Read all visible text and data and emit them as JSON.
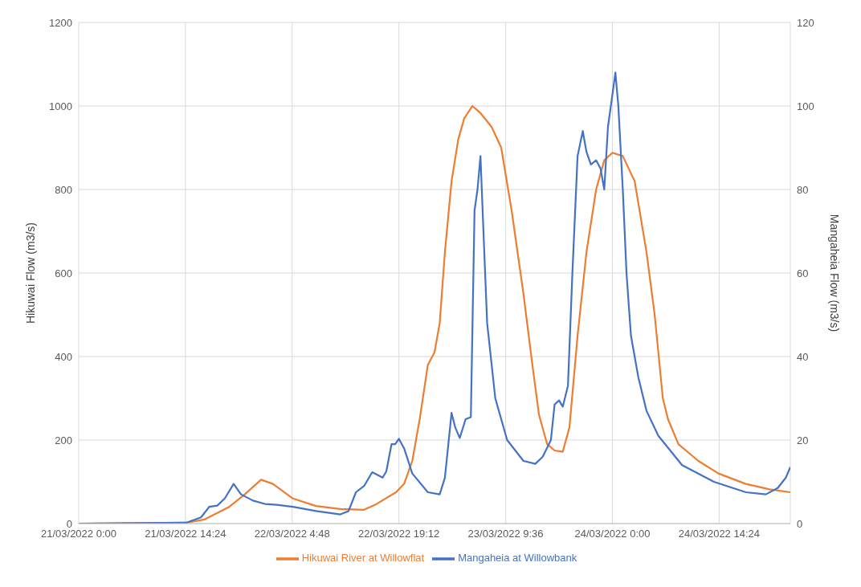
{
  "chart_data": {
    "type": "line",
    "ylabel": "Hikuwai Flow (m3/s)",
    "y2label": "Mangaheia Flow (m3/s)",
    "xlim": [
      "2022-03-21T00:00",
      "2022-03-25T00:00"
    ],
    "xticks": [
      {
        "value": "2022-03-21T00:00",
        "label": "21/03/2022 0:00"
      },
      {
        "value": "2022-03-21T14:24",
        "label": "21/03/2022 14:24"
      },
      {
        "value": "2022-03-22T04:48",
        "label": "22/03/2022 4:48"
      },
      {
        "value": "2022-03-22T19:12",
        "label": "22/03/2022 19:12"
      },
      {
        "value": "2022-03-23T09:36",
        "label": "23/03/2022 9:36"
      },
      {
        "value": "2022-03-24T00:00",
        "label": "24/03/2022 0:00"
      },
      {
        "value": "2022-03-24T14:24",
        "label": "24/03/2022 14:24"
      }
    ],
    "ylim": [
      0,
      1200
    ],
    "yticks": [
      0,
      200,
      400,
      600,
      800,
      1000,
      1200
    ],
    "y2lim": [
      0,
      120
    ],
    "y2ticks": [
      0,
      20,
      40,
      60,
      80,
      100,
      120
    ],
    "grid": true,
    "legend": "bottom",
    "series": [
      {
        "name": "Hikuwai River at Willowflat",
        "color": "#ed7d31",
        "x": [
          "2022-03-21T00:00",
          "2022-03-21T14:30",
          "2022-03-21T17:00",
          "2022-03-21T20:18",
          "2022-03-21T22:24",
          "2022-03-22T00:36",
          "2022-03-22T02:12",
          "2022-03-22T04:54",
          "2022-03-22T08:00",
          "2022-03-22T11:18",
          "2022-03-22T14:30",
          "2022-03-22T16:00",
          "2022-03-22T18:48",
          "2022-03-22T19:54",
          "2022-03-22T21:00",
          "2022-03-22T22:00",
          "2022-03-22T23:06",
          "2022-03-23T00:00",
          "2022-03-23T00:42",
          "2022-03-23T01:24",
          "2022-03-23T02:18",
          "2022-03-23T03:12",
          "2022-03-23T04:00",
          "2022-03-23T05:06",
          "2022-03-23T06:06",
          "2022-03-23T07:42",
          "2022-03-23T09:00",
          "2022-03-23T10:24",
          "2022-03-23T12:00",
          "2022-03-23T13:12",
          "2022-03-23T14:06",
          "2022-03-23T15:12",
          "2022-03-23T16:12",
          "2022-03-23T17:18",
          "2022-03-23T18:12",
          "2022-03-23T19:18",
          "2022-03-23T20:30",
          "2022-03-23T21:48",
          "2022-03-23T22:54",
          "2022-03-24T00:00",
          "2022-03-24T01:24",
          "2022-03-24T03:00",
          "2022-03-24T04:36",
          "2022-03-24T05:42",
          "2022-03-24T06:48",
          "2022-03-24T07:30",
          "2022-03-24T08:54",
          "2022-03-24T11:36",
          "2022-03-24T14:18",
          "2022-03-24T18:00",
          "2022-03-24T21:12",
          "2022-03-25T00:00"
        ],
        "values": [
          0,
          2,
          10,
          40,
          70,
          105,
          95,
          60,
          42,
          35,
          33,
          45,
          75,
          95,
          150,
          250,
          380,
          410,
          480,
          650,
          820,
          920,
          970,
          1000,
          985,
          950,
          900,
          750,
          550,
          380,
          260,
          190,
          175,
          172,
          230,
          450,
          650,
          800,
          870,
          888,
          880,
          820,
          650,
          500,
          300,
          250,
          190,
          150,
          120,
          95,
          82,
          75
        ]
      },
      {
        "name": "Mangaheia at Willowbank",
        "color": "#4472c4",
        "axis": "y2",
        "x": [
          "2022-03-21T00:00",
          "2022-03-21T14:30",
          "2022-03-21T16:30",
          "2022-03-21T17:36",
          "2022-03-21T18:42",
          "2022-03-21T19:42",
          "2022-03-21T20:54",
          "2022-03-21T21:54",
          "2022-03-21T23:30",
          "2022-03-22T01:06",
          "2022-03-22T02:42",
          "2022-03-22T04:54",
          "2022-03-22T08:00",
          "2022-03-22T11:18",
          "2022-03-22T12:24",
          "2022-03-22T13:24",
          "2022-03-22T14:30",
          "2022-03-22T15:36",
          "2022-03-22T17:00",
          "2022-03-22T17:30",
          "2022-03-22T18:12",
          "2022-03-22T18:42",
          "2022-03-22T19:12",
          "2022-03-22T19:54",
          "2022-03-22T21:00",
          "2022-03-22T23:06",
          "2022-03-23T00:42",
          "2022-03-23T01:24",
          "2022-03-23T02:18",
          "2022-03-23T02:48",
          "2022-03-23T03:24",
          "2022-03-23T04:12",
          "2022-03-23T04:54",
          "2022-03-23T05:24",
          "2022-03-23T05:48",
          "2022-03-23T06:12",
          "2022-03-23T06:36",
          "2022-03-23T07:06",
          "2022-03-23T08:12",
          "2022-03-23T09:48",
          "2022-03-23T12:00",
          "2022-03-23T13:36",
          "2022-03-23T14:36",
          "2022-03-23T15:42",
          "2022-03-23T16:12",
          "2022-03-23T16:48",
          "2022-03-23T17:18",
          "2022-03-23T18:00",
          "2022-03-23T18:36",
          "2022-03-23T19:18",
          "2022-03-23T20:00",
          "2022-03-23T20:30",
          "2022-03-23T21:06",
          "2022-03-23T21:48",
          "2022-03-23T22:24",
          "2022-03-23T22:54",
          "2022-03-23T23:24",
          "2022-03-24T00:06",
          "2022-03-24T00:24",
          "2022-03-24T00:48",
          "2022-03-24T01:24",
          "2022-03-24T01:54",
          "2022-03-24T02:30",
          "2022-03-24T03:30",
          "2022-03-24T04:36",
          "2022-03-24T06:12",
          "2022-03-24T09:24",
          "2022-03-24T13:42",
          "2022-03-24T18:00",
          "2022-03-24T20:42",
          "2022-03-24T22:18",
          "2022-03-24T23:24",
          "2022-03-25T00:00"
        ],
        "values": [
          0,
          0.2,
          1.5,
          4,
          4.3,
          6,
          9.5,
          7,
          5.5,
          4.7,
          4.5,
          4,
          3,
          2.2,
          3,
          7.5,
          9,
          12.3,
          11,
          12.5,
          19,
          19,
          20.3,
          18,
          12,
          7.5,
          7,
          11,
          26.5,
          23,
          20.5,
          25,
          25.5,
          75,
          80,
          88,
          70,
          48,
          30,
          20,
          15,
          14.3,
          16,
          20,
          28.5,
          29.5,
          28,
          33,
          60,
          88,
          94,
          89,
          86,
          87,
          85,
          80,
          95,
          104,
          108,
          100,
          80,
          60,
          45,
          35,
          27,
          21,
          14,
          10,
          7.5,
          7,
          8.5,
          11,
          13.5
        ]
      }
    ]
  }
}
